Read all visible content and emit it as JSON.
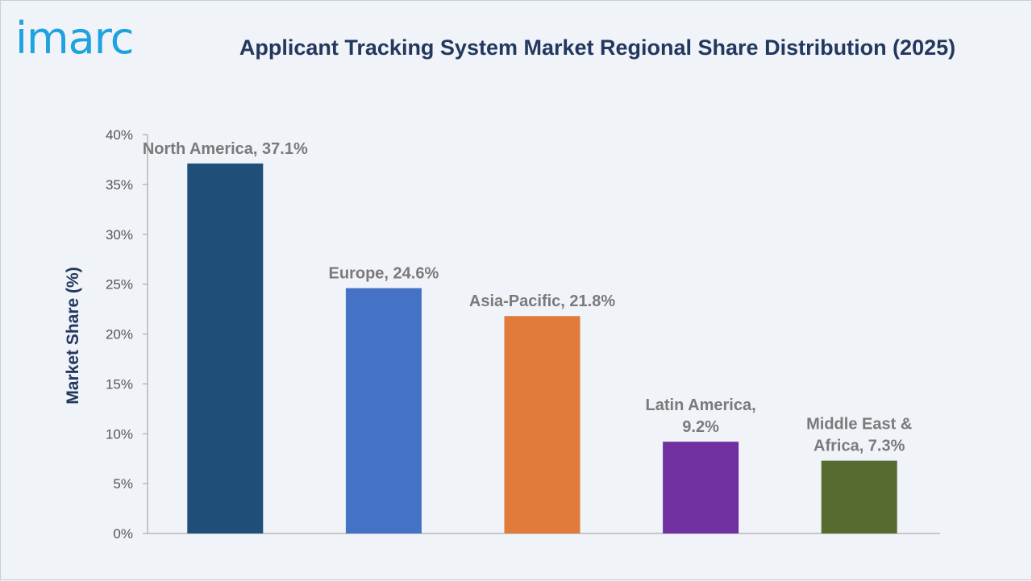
{
  "brand": {
    "logo_text": "imarc",
    "logo_color": "#1fa3e0"
  },
  "colors": {
    "title": "#22385e",
    "axis_label": "#22385e",
    "tick_label": "#555555",
    "data_label": "#7a7a7a",
    "axis_line": "#9a9a9a"
  },
  "chart_data": {
    "type": "bar",
    "title": "Applicant Tracking System Market Regional Share Distribution (2025)",
    "xlabel": "",
    "ylabel": "Market Share (%)",
    "ylim": [
      0,
      40
    ],
    "yticks": [
      {
        "value": 0,
        "label": "0%"
      },
      {
        "value": 5,
        "label": "5%"
      },
      {
        "value": 10,
        "label": "10%"
      },
      {
        "value": 15,
        "label": "15%"
      },
      {
        "value": 20,
        "label": "20%"
      },
      {
        "value": 25,
        "label": "25%"
      },
      {
        "value": 30,
        "label": "30%"
      },
      {
        "value": 35,
        "label": "35%"
      },
      {
        "value": 40,
        "label": "40%"
      }
    ],
    "grid": false,
    "legend": "none",
    "categories": [
      "North America",
      "Europe",
      "Asia-Pacific",
      "Latin America",
      "Middle East & Africa"
    ],
    "values": [
      37.1,
      24.6,
      21.8,
      9.2,
      7.3
    ],
    "data_labels": [
      [
        "North America, 37.1%"
      ],
      [
        "Europe, 24.6%"
      ],
      [
        "Asia-Pacific, 21.8%"
      ],
      [
        "Latin America,",
        "9.2%"
      ],
      [
        "Middle East &",
        "Africa, 7.3%"
      ]
    ],
    "bar_colors": [
      "#1f4e79",
      "#4472c4",
      "#e07b39",
      "#7030a0",
      "#556b2f"
    ]
  }
}
